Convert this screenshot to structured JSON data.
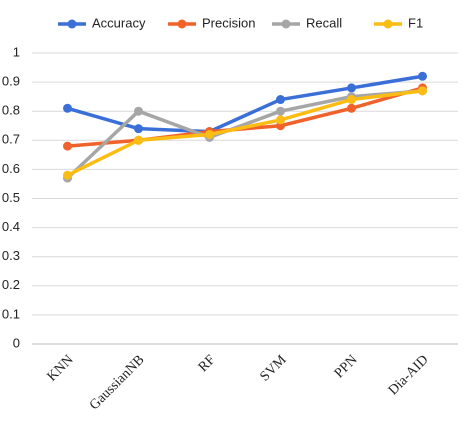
{
  "chart_data": {
    "type": "line",
    "categories": [
      "KNN",
      "GaussianNB",
      "RF",
      "SVM",
      "PPN",
      "Dia-AID"
    ],
    "series": [
      {
        "name": "Accuracy",
        "color": "#3a6fd8",
        "values": [
          0.81,
          0.74,
          0.73,
          0.84,
          0.88,
          0.92
        ]
      },
      {
        "name": "Precision",
        "color": "#f0622a",
        "values": [
          0.68,
          0.7,
          0.73,
          0.75,
          0.81,
          0.88
        ]
      },
      {
        "name": "Recall",
        "color": "#a6a6a6",
        "values": [
          0.57,
          0.8,
          0.71,
          0.8,
          0.85,
          0.87
        ]
      },
      {
        "name": "F1",
        "color": "#fbbc14",
        "values": [
          0.58,
          0.7,
          0.72,
          0.77,
          0.84,
          0.87
        ]
      }
    ],
    "ylim": [
      0,
      1
    ],
    "yticks": [
      0,
      0.1,
      0.2,
      0.3,
      0.4,
      0.5,
      0.6,
      0.7,
      0.8,
      0.9,
      1
    ],
    "grid": true,
    "legend": "top"
  }
}
